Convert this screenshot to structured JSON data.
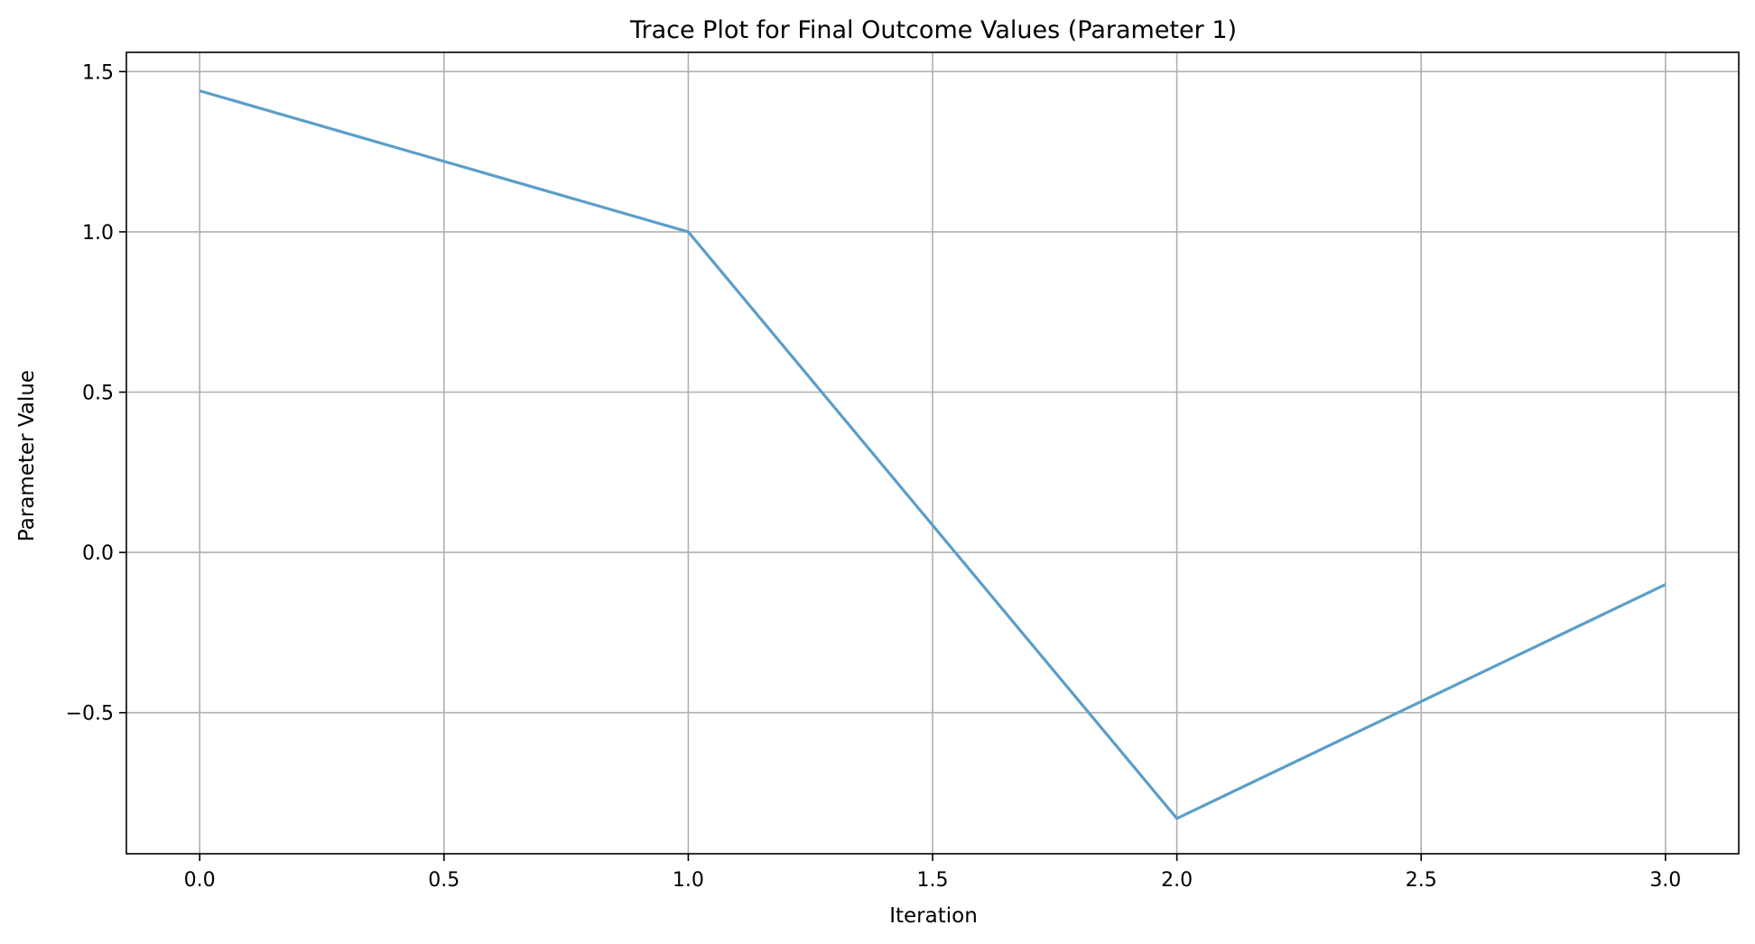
{
  "chart_data": {
    "type": "line",
    "title": "Trace Plot for Final Outcome Values (Parameter 1)",
    "xlabel": "Iteration",
    "ylabel": "Parameter Value",
    "x": [
      0,
      1,
      2,
      3
    ],
    "series": [
      {
        "values": [
          1.44,
          1.0,
          -0.83,
          -0.1
        ]
      }
    ],
    "xlim": [
      -0.15,
      3.15
    ],
    "ylim": [
      -0.94,
      1.56
    ],
    "xticks": [
      0.0,
      0.5,
      1.0,
      1.5,
      2.0,
      2.5,
      3.0
    ],
    "xtick_labels": [
      "0.0",
      "0.5",
      "1.0",
      "1.5",
      "2.0",
      "2.5",
      "3.0"
    ],
    "yticks": [
      -0.5,
      0.0,
      0.5,
      1.0,
      1.5
    ],
    "ytick_labels": [
      "−0.5",
      "0.0",
      "0.5",
      "1.0",
      "1.5"
    ],
    "grid": true,
    "line_color": "#5b9ec9",
    "grid_color": "#b0b0b0"
  }
}
